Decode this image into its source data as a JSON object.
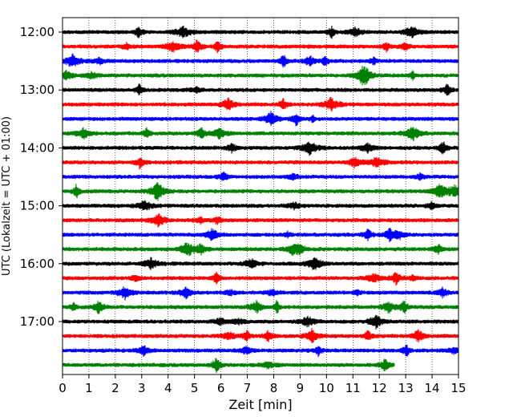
{
  "chart_data": {
    "type": "line",
    "title": "",
    "xlabel": "Zeit  [min]",
    "ylabel": "UTC (Lokalzeit = UTC + 01:00)",
    "xlim": [
      0,
      15
    ],
    "x_ticks": [
      "0",
      "1",
      "2",
      "3",
      "4",
      "5",
      "6",
      "7",
      "8",
      "9",
      "10",
      "11",
      "12",
      "13",
      "14",
      "15"
    ],
    "y_tick_labels": [
      "12:00",
      "13:00",
      "14:00",
      "15:00",
      "16:00",
      "17:00"
    ],
    "grid": "vertical dotted",
    "colors": [
      "#000000",
      "#ff0000",
      "#0000ff",
      "#008000"
    ],
    "traces": [
      {
        "start": "12:00",
        "color": "#000000",
        "end_min": 15
      },
      {
        "start": "12:15",
        "color": "#ff0000",
        "end_min": 15
      },
      {
        "start": "12:30",
        "color": "#0000ff",
        "end_min": 15
      },
      {
        "start": "12:45",
        "color": "#008000",
        "end_min": 15
      },
      {
        "start": "13:00",
        "color": "#000000",
        "end_min": 15
      },
      {
        "start": "13:15",
        "color": "#ff0000",
        "end_min": 15
      },
      {
        "start": "13:30",
        "color": "#0000ff",
        "end_min": 15
      },
      {
        "start": "13:45",
        "color": "#008000",
        "end_min": 15
      },
      {
        "start": "14:00",
        "color": "#000000",
        "end_min": 15
      },
      {
        "start": "14:15",
        "color": "#ff0000",
        "end_min": 15
      },
      {
        "start": "14:30",
        "color": "#0000ff",
        "end_min": 15
      },
      {
        "start": "14:45",
        "color": "#008000",
        "end_min": 15
      },
      {
        "start": "15:00",
        "color": "#000000",
        "end_min": 15
      },
      {
        "start": "15:15",
        "color": "#ff0000",
        "end_min": 15
      },
      {
        "start": "15:30",
        "color": "#0000ff",
        "end_min": 15
      },
      {
        "start": "15:45",
        "color": "#008000",
        "end_min": 15
      },
      {
        "start": "16:00",
        "color": "#000000",
        "end_min": 15
      },
      {
        "start": "16:15",
        "color": "#ff0000",
        "end_min": 15
      },
      {
        "start": "16:30",
        "color": "#0000ff",
        "end_min": 15
      },
      {
        "start": "16:45",
        "color": "#008000",
        "end_min": 15
      },
      {
        "start": "17:00",
        "color": "#000000",
        "end_min": 15
      },
      {
        "start": "17:15",
        "color": "#ff0000",
        "end_min": 15
      },
      {
        "start": "17:30",
        "color": "#0000ff",
        "end_min": 15
      },
      {
        "start": "17:45",
        "color": "#008000",
        "end_min": 12.6
      }
    ]
  }
}
